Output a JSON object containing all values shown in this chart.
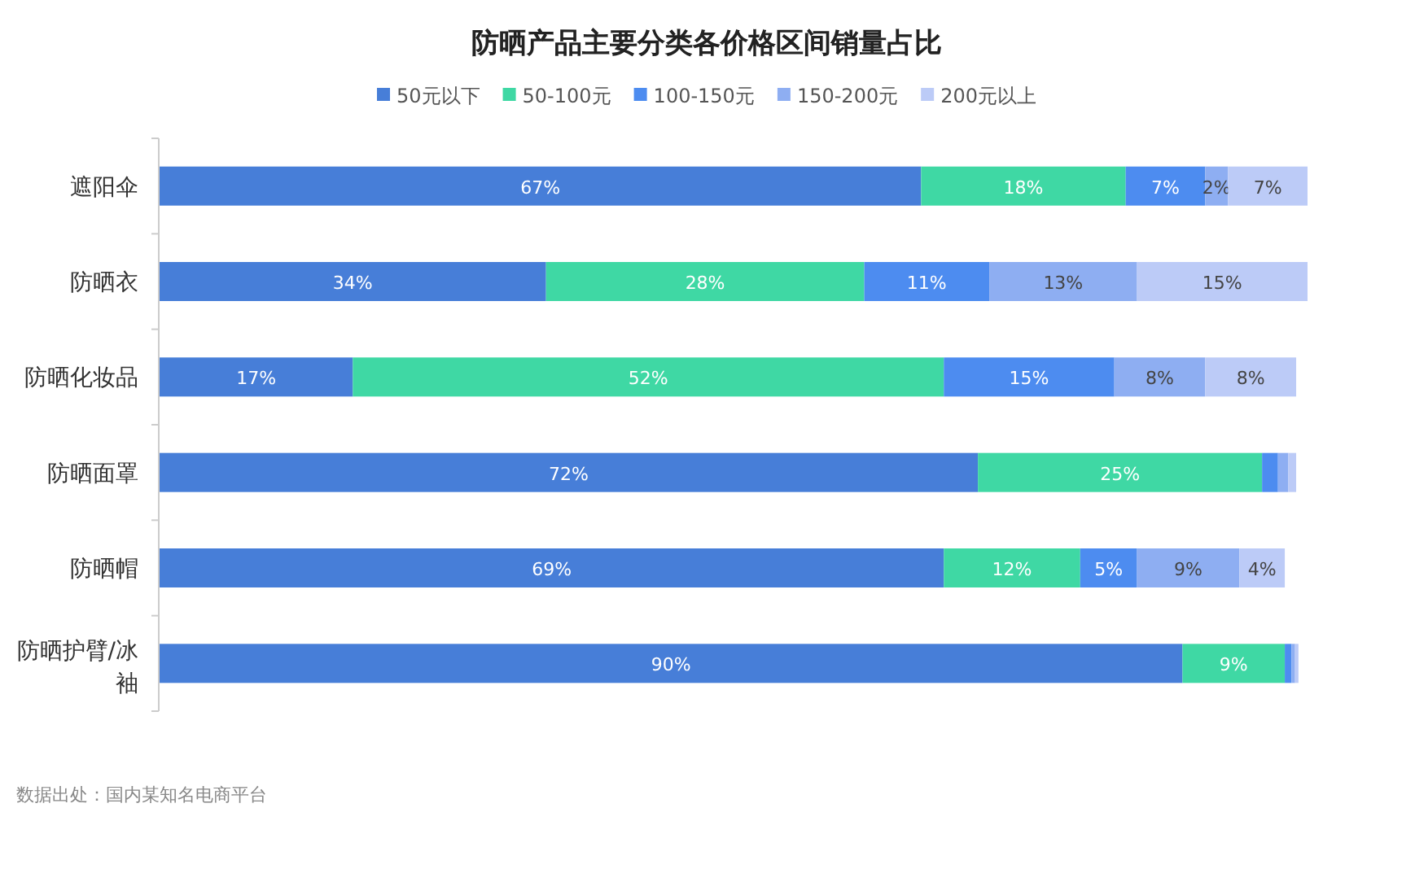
{
  "chart_data": {
    "type": "bar",
    "orientation": "horizontal",
    "stacked": true,
    "title": "防晒产品主要分类各价格区间销量占比",
    "legend": "top",
    "xlim": [
      0,
      101
    ],
    "tick_labels": "y",
    "categories": [
      "遮阳伞",
      "防晒衣",
      "防晒化妆品",
      "防晒面罩",
      "防晒帽",
      "防晒护臂/冰袖"
    ],
    "series": [
      {
        "name": "50元以下",
        "color": "#477ed8",
        "values": [
          67,
          34,
          17,
          72,
          69,
          90
        ],
        "value_labels": [
          "67%",
          "34%",
          "17%",
          "72%",
          "69%",
          "90%"
        ]
      },
      {
        "name": "50-100元",
        "color": "#3fd8a4",
        "values": [
          18,
          28,
          52,
          25,
          12,
          9
        ],
        "value_labels": [
          "18%",
          "28%",
          "52%",
          "25%",
          "12%",
          "9%"
        ]
      },
      {
        "name": "100-150元",
        "color": "#4d8cf0",
        "values": [
          7,
          11,
          15,
          1.4,
          5,
          0.6
        ],
        "value_labels": [
          "7%",
          "11%",
          "15%",
          null,
          "5%",
          null
        ]
      },
      {
        "name": "150-200元",
        "color": "#8eaef2",
        "values": [
          2,
          13,
          8,
          0.9,
          9,
          0.3
        ],
        "value_labels": [
          "2%",
          "13%",
          "8%",
          null,
          "9%",
          null
        ]
      },
      {
        "name": "200元以上",
        "color": "#bccbf7",
        "values": [
          7,
          15,
          8,
          0.7,
          4,
          0.3
        ],
        "value_labels": [
          "7%",
          "15%",
          "8%",
          null,
          "4%",
          null
        ]
      }
    ],
    "annotations": [
      "数据出处：国内某知名电商平台"
    ]
  }
}
